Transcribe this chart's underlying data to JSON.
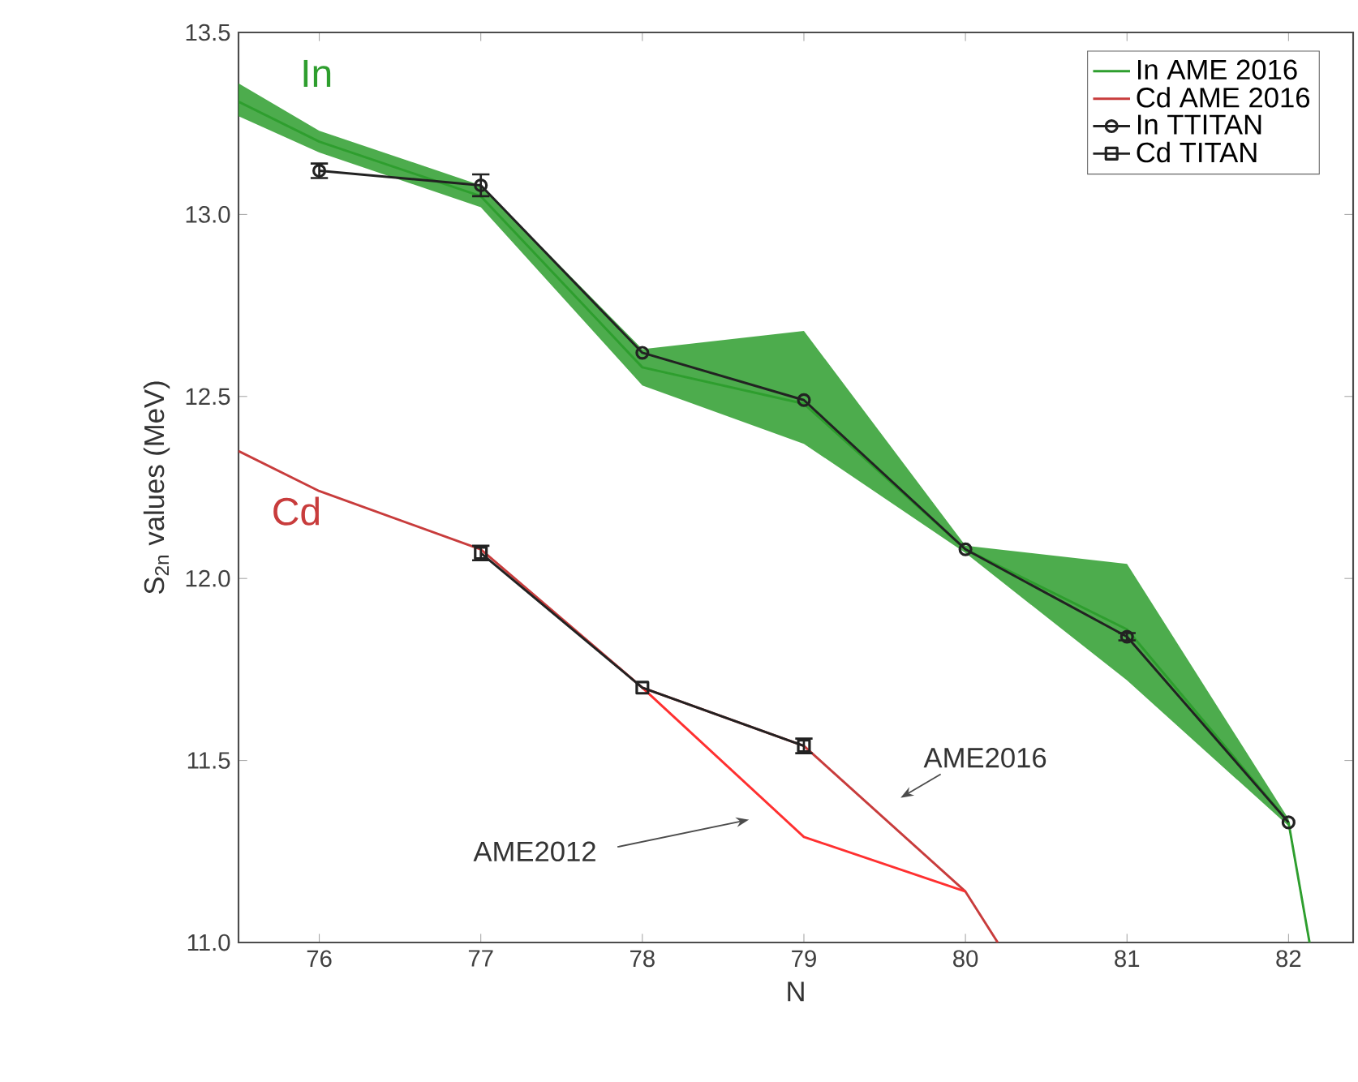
{
  "chart_data": {
    "type": "line",
    "xlabel": "N",
    "ylabel": "S$_{2n}$ values (MeV)",
    "xlim": [
      75.5,
      82.4
    ],
    "ylim": [
      11.0,
      13.5
    ],
    "xticks": [
      76,
      77,
      78,
      79,
      80,
      81,
      82
    ],
    "yticks": [
      {
        "value": 11.0,
        "label": "11.0"
      },
      {
        "value": 11.5,
        "label": "11.5"
      },
      {
        "value": 12.0,
        "label": "12.0"
      },
      {
        "value": 12.5,
        "label": "12.5"
      },
      {
        "value": 13.0,
        "label": "13.0"
      },
      {
        "value": 13.5,
        "label": "13.5"
      }
    ],
    "legend": "top right",
    "series": [
      {
        "name": "In AME 2016",
        "color": "#2e9e2e",
        "marker": "none",
        "x": [
          75.5,
          76,
          77,
          78,
          79,
          80,
          81,
          82,
          82.13
        ],
        "values": [
          13.31,
          13.2,
          13.05,
          12.58,
          12.48,
          12.08,
          11.86,
          11.33,
          11.0
        ],
        "lower": [
          13.27,
          13.17,
          13.02,
          12.53,
          12.37,
          12.07,
          11.72,
          11.32,
          11.0
        ],
        "upper": [
          13.36,
          13.23,
          13.08,
          12.63,
          12.68,
          12.09,
          12.04,
          11.34,
          11.0
        ]
      },
      {
        "name": "Cd AME 2016",
        "color": "#c83c3c",
        "marker": "none",
        "x": [
          75.5,
          76,
          77,
          78,
          79,
          80,
          80.2
        ],
        "values": [
          12.35,
          12.24,
          12.08,
          11.7,
          11.54,
          11.14,
          11.0
        ]
      },
      {
        "color": "#ff3030",
        "marker": "none",
        "x": [
          78,
          79,
          80
        ],
        "values": [
          11.7,
          11.29,
          11.14
        ]
      },
      {
        "name": "In TTITAN",
        "color": "#222222",
        "marker": "circle",
        "x": [
          76,
          77,
          78,
          79,
          80,
          81,
          82
        ],
        "values": [
          13.12,
          13.08,
          12.62,
          12.49,
          12.08,
          11.84,
          11.33
        ],
        "errors": [
          0.02,
          0.03,
          null,
          null,
          null,
          0.01,
          null
        ]
      },
      {
        "name": "Cd TITAN",
        "color": "#222222",
        "marker": "square",
        "x": [
          77,
          78,
          79
        ],
        "values": [
          12.07,
          11.7,
          11.54
        ],
        "errors": [
          0.02,
          null,
          0.02
        ]
      }
    ],
    "annotations": [
      "In",
      "Cd",
      "AME2016",
      "AME2012"
    ]
  }
}
